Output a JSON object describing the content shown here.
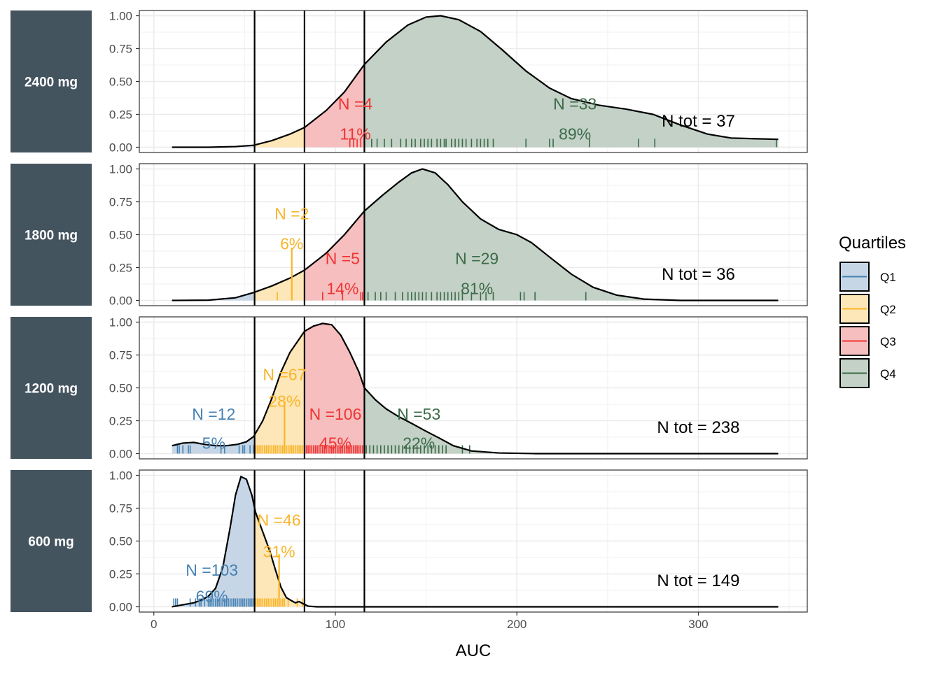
{
  "chart_data": {
    "type": "area",
    "xlabel": "AUC",
    "x_ticks": [
      0,
      100,
      200,
      300
    ],
    "y_ticks": [
      "0.00",
      "0.25",
      "0.50",
      "0.75",
      "1.00"
    ],
    "xlim": [
      -8,
      360
    ],
    "ylim": [
      -0.04,
      1.04
    ],
    "quartile_cutoffs": [
      55.5,
      83,
      116
    ],
    "legend": {
      "title": "Quartiles",
      "position": "right",
      "items": [
        {
          "label": "Q1",
          "fill": "#c6d6e6",
          "line": "#4682b4"
        },
        {
          "label": "Q2",
          "fill": "#fde6b7",
          "line": "#f9b528"
        },
        {
          "label": "Q3",
          "fill": "#f6bebe",
          "line": "#ee3434"
        },
        {
          "label": "Q4",
          "fill": "#c3d1c7",
          "line": "#3c6b48"
        }
      ]
    },
    "panels": [
      {
        "strip": "2400 mg",
        "ntot_label": "N tot = 37",
        "density": [
          [
            10,
            0
          ],
          [
            30,
            0
          ],
          [
            45,
            0.005
          ],
          [
            55,
            0.015
          ],
          [
            65,
            0.05
          ],
          [
            75,
            0.1
          ],
          [
            83,
            0.15
          ],
          [
            95,
            0.28
          ],
          [
            105,
            0.42
          ],
          [
            116,
            0.63
          ],
          [
            128,
            0.8
          ],
          [
            140,
            0.93
          ],
          [
            150,
            0.99
          ],
          [
            158,
            1.0
          ],
          [
            168,
            0.97
          ],
          [
            180,
            0.88
          ],
          [
            192,
            0.74
          ],
          [
            205,
            0.58
          ],
          [
            218,
            0.45
          ],
          [
            230,
            0.37
          ],
          [
            245,
            0.32
          ],
          [
            260,
            0.29
          ],
          [
            275,
            0.25
          ],
          [
            290,
            0.17
          ],
          [
            305,
            0.1
          ],
          [
            318,
            0.07
          ],
          [
            330,
            0.065
          ],
          [
            344,
            0.06
          ]
        ],
        "annotations": [
          {
            "q": 3,
            "n": "N =4",
            "pct": "11%",
            "x": 111,
            "rug": [
              108,
              110,
              112,
              114
            ]
          },
          {
            "q": 4,
            "n": "N =33",
            "pct": "89%",
            "x": 232,
            "rug": [
              120,
              123,
              127,
              131,
              136,
              139,
              142,
              144,
              147,
              149,
              151,
              153,
              156,
              158,
              160,
              161,
              164,
              166,
              168,
              170,
              172,
              175,
              178,
              180,
              182,
              184,
              187,
              205,
              218,
              220,
              240,
              267,
              276,
              343
            ]
          }
        ]
      },
      {
        "strip": "1800 mg",
        "ntot_label": "N tot = 36",
        "density": [
          [
            10,
            0
          ],
          [
            30,
            0.002
          ],
          [
            45,
            0.02
          ],
          [
            55,
            0.06
          ],
          [
            65,
            0.11
          ],
          [
            75,
            0.17
          ],
          [
            83,
            0.23
          ],
          [
            95,
            0.36
          ],
          [
            105,
            0.5
          ],
          [
            116,
            0.68
          ],
          [
            126,
            0.8
          ],
          [
            135,
            0.9
          ],
          [
            142,
            0.97
          ],
          [
            148,
            1.0
          ],
          [
            155,
            0.97
          ],
          [
            162,
            0.88
          ],
          [
            170,
            0.75
          ],
          [
            180,
            0.62
          ],
          [
            190,
            0.54
          ],
          [
            200,
            0.5
          ],
          [
            208,
            0.44
          ],
          [
            218,
            0.33
          ],
          [
            230,
            0.2
          ],
          [
            242,
            0.1
          ],
          [
            255,
            0.04
          ],
          [
            270,
            0.01
          ],
          [
            290,
            0
          ],
          [
            344,
            0
          ]
        ],
        "annotations": [
          {
            "q": 2,
            "n": "N =2",
            "pct": "6%",
            "x": 76,
            "rug": [
              68,
              76
            ]
          },
          {
            "q": 3,
            "n": "N =5",
            "pct": "14%",
            "x": 104,
            "rug": [
              93,
              104,
              114,
              115,
              116
            ]
          },
          {
            "q": 4,
            "n": "N =29",
            "pct": "81%",
            "x": 178,
            "rug": [
              118,
              122,
              125,
              128,
              133,
              137,
              140,
              142,
              144,
              146,
              148,
              150,
              153,
              156,
              158,
              160,
              162,
              164,
              166,
              168,
              170,
              175,
              180,
              183,
              187,
              202,
              204,
              210,
              238
            ]
          }
        ]
      },
      {
        "strip": "1200 mg",
        "ntot_label": "N tot = 238",
        "density": [
          [
            10,
            0.06
          ],
          [
            16,
            0.08
          ],
          [
            22,
            0.085
          ],
          [
            28,
            0.07
          ],
          [
            34,
            0.06
          ],
          [
            40,
            0.06
          ],
          [
            46,
            0.07
          ],
          [
            51,
            0.09
          ],
          [
            55,
            0.13
          ],
          [
            60,
            0.25
          ],
          [
            65,
            0.42
          ],
          [
            70,
            0.62
          ],
          [
            75,
            0.77
          ],
          [
            80,
            0.87
          ],
          [
            83,
            0.93
          ],
          [
            88,
            0.97
          ],
          [
            93,
            0.99
          ],
          [
            98,
            0.98
          ],
          [
            103,
            0.9
          ],
          [
            108,
            0.77
          ],
          [
            113,
            0.62
          ],
          [
            116,
            0.5
          ],
          [
            122,
            0.41
          ],
          [
            128,
            0.34
          ],
          [
            135,
            0.28
          ],
          [
            142,
            0.23
          ],
          [
            150,
            0.17
          ],
          [
            157,
            0.12
          ],
          [
            165,
            0.06
          ],
          [
            175,
            0.02
          ],
          [
            190,
            0.005
          ],
          [
            210,
            0
          ],
          [
            344,
            0
          ]
        ],
        "annotations": [
          {
            "q": 1,
            "n": "N =12",
            "pct": "5%",
            "x": 33,
            "rug": [
              13,
              14,
              16,
              19,
              20,
              37,
              39,
              47,
              49,
              50,
              53,
              55
            ]
          },
          {
            "q": 2,
            "n": "N =67",
            "pct": "28%",
            "x": 72,
            "rug": [
              56,
              57,
              58,
              59,
              60,
              61,
              62,
              63,
              64,
              65,
              66,
              67,
              68,
              69,
              70,
              71,
              72,
              73,
              74,
              75,
              76,
              77,
              78,
              79,
              80,
              81,
              82,
              83
            ]
          },
          {
            "q": 3,
            "n": "N =106",
            "pct": "45%",
            "x": 100,
            "rug": [
              84,
              85,
              86,
              87,
              88,
              89,
              90,
              91,
              92,
              93,
              94,
              95,
              96,
              97,
              98,
              99,
              100,
              101,
              102,
              103,
              104,
              105,
              106,
              107,
              108,
              109,
              110,
              111,
              112,
              113,
              114,
              115
            ]
          },
          {
            "q": 4,
            "n": "N =53",
            "pct": "22%",
            "x": 146,
            "rug": [
              117,
              119,
              121,
              123,
              125,
              127,
              129,
              131,
              133,
              135,
              137,
              139,
              141,
              143,
              145,
              147,
              149,
              151,
              153,
              155,
              157,
              159,
              161,
              170,
              174
            ]
          }
        ]
      },
      {
        "strip": "600 mg",
        "ntot_label": "N tot = 149",
        "density": [
          [
            10,
            0
          ],
          [
            14,
            0.01
          ],
          [
            18,
            0.02
          ],
          [
            22,
            0.03
          ],
          [
            26,
            0.05
          ],
          [
            30,
            0.08
          ],
          [
            34,
            0.14
          ],
          [
            38,
            0.3
          ],
          [
            42,
            0.6
          ],
          [
            45,
            0.85
          ],
          [
            48,
            0.99
          ],
          [
            51,
            0.97
          ],
          [
            54,
            0.85
          ],
          [
            56,
            0.72
          ],
          [
            60,
            0.57
          ],
          [
            64,
            0.42
          ],
          [
            67,
            0.28
          ],
          [
            70,
            0.15
          ],
          [
            73,
            0.07
          ],
          [
            76,
            0.045
          ],
          [
            78,
            0.03
          ],
          [
            80,
            0.04
          ],
          [
            82,
            0.025
          ],
          [
            85,
            0.005
          ],
          [
            90,
            0
          ],
          [
            344,
            0
          ]
        ],
        "annotations": [
          {
            "q": 1,
            "n": "N =103",
            "pct": "69%",
            "x": 32,
            "rug": [
              11,
              12,
              13,
              20,
              23,
              25,
              26,
              28,
              30,
              31,
              32,
              33,
              34,
              35,
              36,
              37,
              38,
              39,
              40,
              41,
              42,
              43,
              44,
              45,
              46,
              47,
              48,
              49,
              50,
              51,
              52,
              53,
              54,
              55
            ]
          },
          {
            "q": 2,
            "n": "N =46",
            "pct": "31%",
            "x": 69,
            "rug": [
              56,
              57,
              58,
              59,
              60,
              61,
              62,
              63,
              64,
              65,
              66,
              67,
              68,
              69,
              70,
              71,
              72,
              74,
              79,
              82
            ]
          }
        ]
      }
    ]
  }
}
